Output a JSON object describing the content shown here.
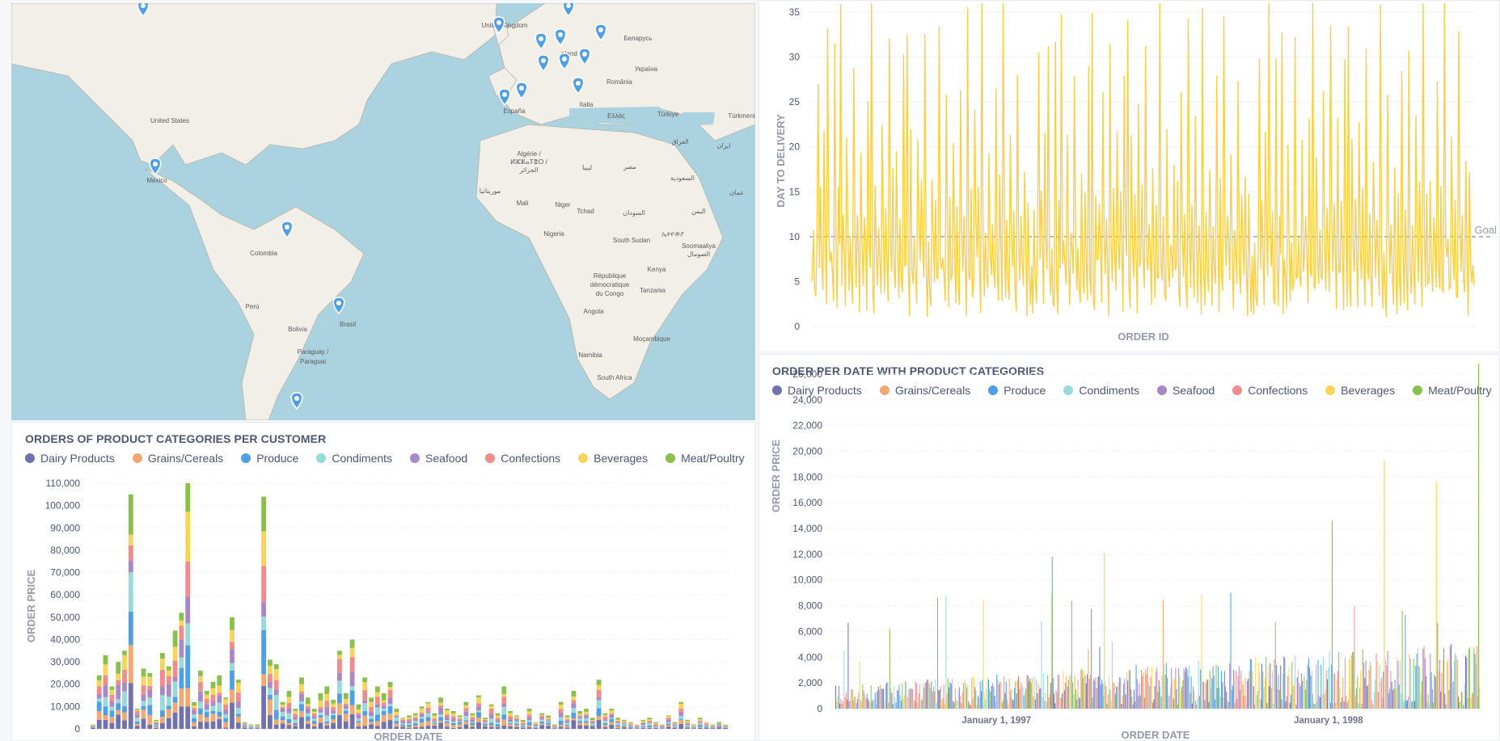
{
  "colors": {
    "axis_text": "#4c5773",
    "axis_title": "#949aab",
    "grid": "#eef0f4",
    "ocean": "#aad3df",
    "land": "#f2efe9",
    "pin": "#509ee3"
  },
  "map": {
    "labels": [
      "United Kingdom",
      "Беларусь",
      "Україна",
      "România",
      "España",
      "Italia",
      "Ελλάς",
      "Türkiye",
      "Türkmenis",
      "United States",
      "México",
      "Colombia",
      "Perú",
      "Bolivia",
      "Brasil",
      "Paraguay /",
      "Paraguai",
      "Algérie /",
      "ⵍⵣⵣⴰⵢⴻⵔ /",
      "الجزائر",
      "موريتانيا",
      "Mali",
      "Niger",
      "Tchad",
      "ليبيا",
      "مصر",
      "السودان",
      "Nigeria",
      "South Sudan",
      "ኢትዮጵያ",
      "Soomaaliya",
      "الصومال",
      "République",
      "démocratique",
      "du Congo",
      "Kenya",
      "Tanzania",
      "Angola",
      "Moçambique",
      "Namibia",
      "South Africa",
      "العراق",
      "ایران",
      "السعودية",
      "اليمن",
      "عمان",
      "nland"
    ]
  },
  "delivery_chart": {
    "goal_label": "Goal"
  },
  "customer_chart": {
    "title": "ORDERS OF PRODUCT CATEGORIES PER CUSTOMER"
  },
  "date_chart": {
    "title": "ORDER PER DATE WITH PRODUCT CATEGORIES"
  },
  "legend": [
    {
      "name": "Dairy Products",
      "color": "#7172ad"
    },
    {
      "name": "Grains/Cereals",
      "color": "#f2a86f"
    },
    {
      "name": "Produce",
      "color": "#509ee3"
    },
    {
      "name": "Condiments",
      "color": "#98d9d9"
    },
    {
      "name": "Seafood",
      "color": "#a989c5"
    },
    {
      "name": "Confections",
      "color": "#ef8c8c"
    },
    {
      "name": "Beverages",
      "color": "#f9d45c"
    },
    {
      "name": "Meat/Poultry",
      "color": "#88bf4d"
    }
  ],
  "chart_data": [
    {
      "type": "line",
      "title": "",
      "xlabel": "ORDER ID",
      "ylabel": "DAY TO DELIVERY",
      "ylim": [
        0,
        35
      ],
      "yticks": [
        "0",
        "5",
        "10",
        "15",
        "20",
        "25",
        "30",
        "35"
      ],
      "goal": {
        "label": "Goal",
        "value": 10
      },
      "series": [
        {
          "color": "#f9cf48",
          "approx_values": [
            8,
            3,
            12,
            6,
            2,
            9,
            28,
            5,
            14,
            7,
            3,
            21,
            8,
            4,
            34,
            9,
            6,
            11,
            5,
            3,
            29,
            7,
            2,
            13,
            8,
            35,
            4,
            10,
            6,
            3,
            22,
            9,
            5,
            12,
            7,
            3,
            30,
            8,
            4,
            11,
            6,
            2,
            19,
            9,
            5,
            14,
            7,
            3,
            26,
            8,
            4,
            36,
            6,
            2,
            17,
            9,
            5,
            12,
            7,
            3,
            24,
            8,
            4,
            11,
            6,
            2,
            32,
            9,
            5,
            15,
            7,
            3,
            21,
            8,
            4,
            13,
            6,
            2,
            28,
            9,
            5,
            35,
            7,
            3,
            19,
            8,
            4,
            12,
            6,
            2,
            23,
            9,
            5,
            14,
            7,
            3,
            31,
            8,
            4,
            11,
            6,
            2,
            18,
            9,
            5,
            13,
            7,
            3,
            35,
            8,
            4,
            10,
            6,
            2,
            25,
            9,
            5,
            12,
            7,
            3,
            20,
            8,
            4,
            15,
            6,
            2,
            29,
            9,
            5,
            11,
            7,
            3,
            33,
            8,
            4,
            13,
            6,
            2,
            22,
            9,
            5,
            14,
            7,
            3,
            35,
            8,
            4,
            12,
            6,
            2,
            19,
            9,
            5,
            10,
            7,
            3,
            27,
            8,
            4,
            14,
            6,
            2,
            35,
            9,
            5,
            11,
            7,
            3,
            21,
            8,
            4,
            13,
            6,
            2,
            30,
            9,
            5,
            12,
            7,
            3,
            18,
            8,
            4,
            15,
            6,
            2
          ]
        }
      ]
    },
    {
      "type": "bar",
      "title": "ORDERS OF PRODUCT CATEGORIES PER CUSTOMER",
      "xlabel": "ORDER DATE",
      "ylabel": "ORDER PRICE",
      "ylim": [
        0,
        110000
      ],
      "yticks": [
        "0",
        "10,000",
        "20,000",
        "30,000",
        "40,000",
        "50,000",
        "60,000",
        "70,000",
        "80,000",
        "90,000",
        "100,000",
        "110,000"
      ],
      "stacked": true,
      "series_order": [
        "Dairy Products",
        "Grains/Cereals",
        "Produce",
        "Condiments",
        "Seafood",
        "Confections",
        "Beverages",
        "Meat/Poultry"
      ],
      "approx_bar_totals": [
        2000,
        24000,
        33000,
        19000,
        30000,
        35000,
        105000,
        9000,
        27000,
        25000,
        4000,
        34000,
        28000,
        44000,
        52000,
        110000,
        12000,
        26000,
        17000,
        21000,
        24000,
        14000,
        50000,
        22000,
        3000,
        2000,
        2000,
        104000,
        31000,
        29000,
        12000,
        17000,
        9000,
        23000,
        14000,
        9000,
        16000,
        19000,
        13000,
        35000,
        16000,
        40000,
        11000,
        23000,
        14000,
        19000,
        16000,
        21000,
        9000,
        5000,
        6000,
        7000,
        10000,
        12000,
        7000,
        14000,
        9000,
        8000,
        6000,
        12000,
        7000,
        15000,
        5000,
        11000,
        7000,
        19000,
        8000,
        6000,
        4000,
        9000,
        3000,
        7000,
        6000,
        2000,
        12000,
        6000,
        17000,
        8000,
        9000,
        5000,
        22000,
        7000,
        9000,
        5000,
        4000,
        3000,
        2000,
        4000,
        5000,
        3000,
        2000,
        6000,
        3000,
        12000,
        4000,
        2000,
        5000,
        3000,
        2000,
        3000,
        2000
      ]
    },
    {
      "type": "bar",
      "title": "ORDER PER DATE WITH PRODUCT CATEGORIES",
      "xlabel": "ORDER DATE",
      "ylabel": "ORDER PRICE",
      "ylim": [
        0,
        27000
      ],
      "yticks": [
        "0",
        "2,000",
        "4,000",
        "6,000",
        "8,000",
        "10,000",
        "12,000",
        "14,000",
        "16,000",
        "18,000",
        "20,000",
        "22,000",
        "24,000",
        "26,000"
      ],
      "xticks": [
        "January 1, 1997",
        "January 1, 1998"
      ],
      "stacked": false,
      "notable_peaks": [
        {
          "series": "Meat/Poultry",
          "value": 26800,
          "position": "end"
        },
        {
          "series": "Beverages",
          "value": 19300,
          "position": "early 1998"
        },
        {
          "series": "Beverages",
          "value": 17600,
          "position": "early 1998"
        },
        {
          "series": "Meat/Poultry",
          "value": 14600,
          "position": "early 1998"
        },
        {
          "series": "Meat/Poultry",
          "value": 11800,
          "position": "1997"
        },
        {
          "series": "Beverages",
          "value": 12100,
          "position": "1997"
        }
      ]
    }
  ]
}
